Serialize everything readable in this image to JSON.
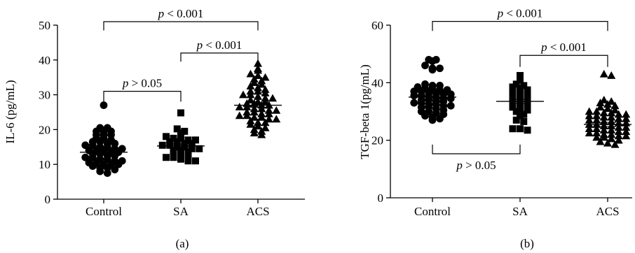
{
  "chart_data": [
    {
      "panel_label": "(a)",
      "type": "scatter",
      "subtype": "dot-plot",
      "ylabel": "IL-6 (pg/mL)",
      "ylim": [
        0,
        50
      ],
      "yticks": [
        0,
        10,
        20,
        30,
        40,
        50
      ],
      "categories": [
        "Control",
        "SA",
        "ACS"
      ],
      "marker_shapes": [
        "circle",
        "square",
        "triangle"
      ],
      "series": [
        {
          "category": "Control",
          "marker": "circle",
          "mean": 13.5,
          "values": [
            27,
            20.5,
            20.5,
            19.5,
            19.5,
            19.5,
            18.5,
            18.5,
            18.5,
            17.5,
            17.5,
            17,
            16.5,
            16.5,
            16,
            16,
            15.5,
            15.5,
            15,
            15,
            14.5,
            14.5,
            14,
            14,
            14,
            13.5,
            13.5,
            13,
            13,
            12.5,
            12.5,
            12,
            12,
            11.5,
            11.5,
            11,
            11,
            10.5,
            10.5,
            10,
            10,
            10,
            9.5,
            9,
            9,
            8.5,
            8,
            7.5
          ]
        },
        {
          "category": "SA",
          "marker": "square",
          "mean": 15.3,
          "values": [
            24.8,
            20.2,
            19.5,
            19,
            18,
            17.5,
            17.5,
            17,
            17,
            16.5,
            16.5,
            16,
            16,
            15.5,
            15.5,
            15,
            15,
            14.5,
            14.5,
            14,
            14,
            13.5,
            13,
            13,
            12.5,
            12,
            12,
            11.5,
            11,
            11
          ]
        },
        {
          "category": "ACS",
          "marker": "triangle",
          "mean": 27,
          "values": [
            39,
            37.5,
            37,
            36,
            35.5,
            35,
            34.5,
            34,
            33.5,
            33,
            32.5,
            32,
            31.5,
            31,
            31,
            30.5,
            30,
            30,
            29.5,
            29,
            29,
            28.5,
            28,
            28,
            27.5,
            27.5,
            27,
            27,
            26.5,
            26.5,
            26,
            26,
            25.5,
            25.5,
            25,
            25,
            24.5,
            24.5,
            24,
            24,
            23.5,
            23.5,
            23,
            23,
            22.5,
            22,
            22,
            21.5,
            21,
            20.5,
            20,
            19.5,
            19,
            18.5
          ]
        }
      ],
      "comparisons": [
        {
          "from": "Control",
          "to": "SA",
          "label": "p > 0.05",
          "y": 31,
          "drop_to": [
            28,
            28
          ],
          "placement": "above"
        },
        {
          "from": "SA",
          "to": "ACS",
          "label": "p < 0.001",
          "y": 42,
          "drop_to": [
            39.5,
            39.5
          ],
          "placement": "above"
        },
        {
          "from": "Control",
          "to": "ACS",
          "label": "p < 0.001",
          "y": 51,
          "drop_to": [
            48.5,
            48.5
          ],
          "placement": "above"
        }
      ]
    },
    {
      "panel_label": "(b)",
      "type": "scatter",
      "subtype": "dot-plot",
      "ylabel": "TGF-beta 1(pg/mL)",
      "ylim": [
        0,
        60
      ],
      "yticks": [
        0,
        20,
        40,
        60
      ],
      "categories": [
        "Control",
        "SA",
        "ACS"
      ],
      "marker_shapes": [
        "circle",
        "square",
        "triangle"
      ],
      "series": [
        {
          "category": "Control",
          "marker": "circle",
          "mean": 35,
          "values": [
            48,
            48,
            47.5,
            46,
            45,
            45,
            44.5,
            39.5,
            39,
            39,
            38.5,
            38,
            38,
            37.5,
            37.5,
            37,
            37,
            36.5,
            36.5,
            36,
            36,
            35.5,
            35.5,
            35,
            35,
            34.5,
            34.5,
            34,
            34,
            33.5,
            33.5,
            33,
            33,
            32.5,
            32.5,
            32,
            32,
            31.5,
            31.5,
            31,
            30.5,
            30,
            30,
            29.5,
            29,
            28.5,
            28,
            27.5,
            27
          ]
        },
        {
          "category": "SA",
          "marker": "square",
          "mean": 33.5,
          "values": [
            42.5,
            41,
            39.5,
            39,
            38.5,
            38,
            37.5,
            37,
            36.5,
            36,
            35.5,
            35,
            34.5,
            34,
            34,
            33.5,
            33,
            32.5,
            32,
            31.5,
            31,
            30.5,
            30,
            29,
            28.5,
            27,
            26.5,
            24,
            24,
            23.5
          ]
        },
        {
          "category": "ACS",
          "marker": "triangle",
          "mean": 25.5,
          "values": [
            43,
            42.5,
            34,
            33.5,
            33,
            32.5,
            32,
            31.5,
            31,
            30.5,
            30,
            30,
            29.5,
            29.5,
            29,
            29,
            28.5,
            28.5,
            28,
            28,
            27.5,
            27.5,
            27,
            27,
            26.5,
            26.5,
            26,
            26,
            25.5,
            25.5,
            25,
            25,
            24.5,
            24.5,
            24,
            24,
            23.5,
            23.5,
            23,
            23,
            22.5,
            22.5,
            22,
            22,
            21.5,
            21.5,
            21,
            21,
            20.5,
            20,
            19.5,
            19,
            18.5
          ]
        }
      ],
      "comparisons": [
        {
          "from": "Control",
          "to": "SA",
          "label": "p > 0.05",
          "y": 15.3,
          "drop_to": [
            18.5,
            18.5
          ],
          "placement": "below"
        },
        {
          "from": "SA",
          "to": "ACS",
          "label": "p < 0.001",
          "y": 49.5,
          "drop_to": [
            45.5,
            45.5
          ],
          "placement": "above"
        },
        {
          "from": "Control",
          "to": "ACS",
          "label": "p < 0.001",
          "y": 61.3,
          "drop_to": [
            58,
            58
          ],
          "placement": "above"
        }
      ]
    }
  ]
}
